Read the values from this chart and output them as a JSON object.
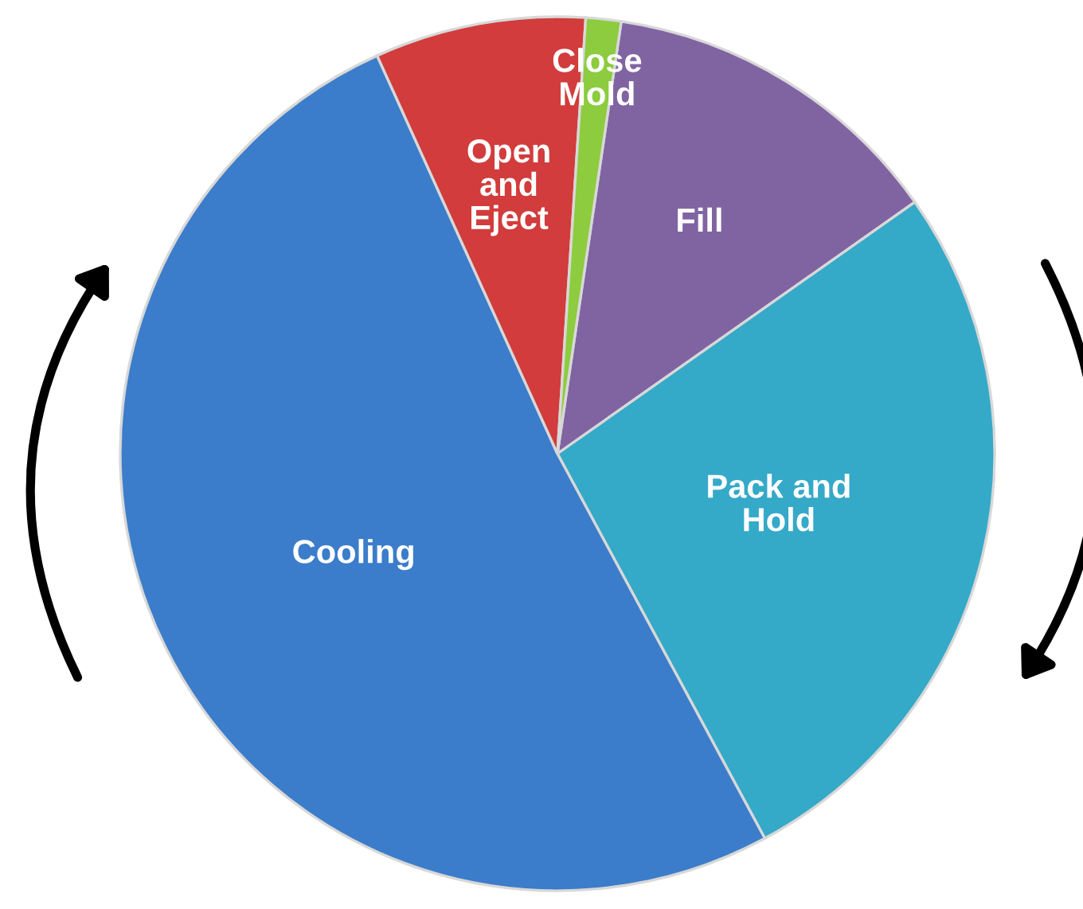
{
  "chart_data": {
    "type": "pie",
    "categories": [
      "Fill",
      "Pack and\nHold",
      "Cooling",
      "Open\nand\nEject",
      "Close\nMold"
    ],
    "values": [
      12.9,
      26.9,
      51.1,
      7.8,
      1.3
    ],
    "colors": [
      "#8064a2",
      "#35a9c8",
      "#3b7dca",
      "#d23c3c",
      "#8ccc3e"
    ],
    "legend": false
  }
}
